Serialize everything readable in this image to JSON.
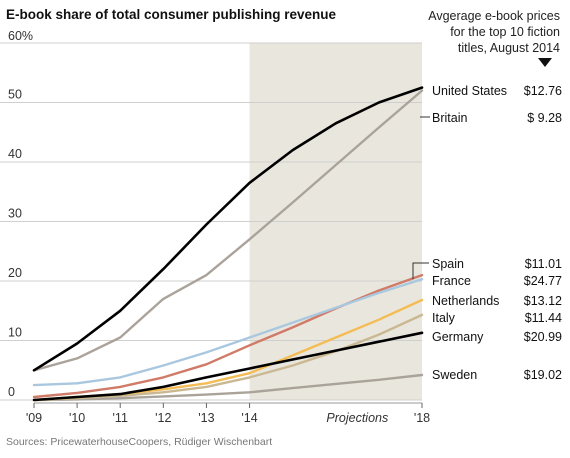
{
  "chart_data": {
    "type": "line",
    "title": "E-book share of total consumer publishing revenue",
    "ylabel": "",
    "y_unit_label": "60%",
    "ylim": [
      0,
      60
    ],
    "y_ticks": [
      "50",
      "40",
      "30",
      "20",
      "10",
      "0"
    ],
    "x_tick_labels": [
      "'09",
      "'10",
      "'11",
      "'12",
      "'13",
      "'14",
      "'18"
    ],
    "x": [
      2009,
      2010,
      2011,
      2012,
      2013,
      2014,
      2015,
      2016,
      2017,
      2018
    ],
    "projections_label": "Projections",
    "projection_range": [
      2014,
      2018
    ],
    "price_header": [
      "Avgerage e-book prices",
      "for the top 10 fiction",
      "titles, August 2014"
    ],
    "series": [
      {
        "name": "United States",
        "price": "$12.76",
        "color": "#000000",
        "values": [
          5,
          9.5,
          15,
          22,
          29.5,
          36.5,
          42,
          46.5,
          50,
          52.5
        ]
      },
      {
        "name": "Britain",
        "price": "$ 9.28",
        "color": "#aaa39a",
        "values": [
          5,
          7,
          10.5,
          17,
          21,
          27,
          33.2,
          39.5,
          45.8,
          52
        ]
      },
      {
        "name": "Spain",
        "price": "$11.01",
        "color": "#a9c8e0",
        "values": [
          2.5,
          2.8,
          3.8,
          5.8,
          8,
          10.5,
          13,
          15.5,
          18,
          20.3
        ]
      },
      {
        "name": "France",
        "price": "$24.77",
        "color": "#d07a68",
        "values": [
          0.5,
          1.2,
          2.2,
          3.8,
          6,
          9.2,
          12.2,
          15.4,
          18.4,
          21
        ]
      },
      {
        "name": "Netherlands",
        "price": "$13.12",
        "color": "#f4bc55",
        "values": [
          0,
          0.5,
          1,
          1.8,
          2.8,
          4.5,
          7.5,
          10.5,
          13.5,
          16.8
        ]
      },
      {
        "name": "Italy",
        "price": "$11.44",
        "color": "#c9b892",
        "values": [
          0,
          0.3,
          0.7,
          1.3,
          2.2,
          3.8,
          5.8,
          8.2,
          11,
          14.3
        ]
      },
      {
        "name": "Germany",
        "price": "$20.99",
        "color": "#000000",
        "values": [
          0,
          0.5,
          1,
          2.2,
          3.8,
          5.3,
          6.8,
          8.3,
          9.8,
          11.3
        ]
      },
      {
        "name": "Sweden",
        "price": "$19.02",
        "color": "#aaa39a",
        "values": [
          0,
          0.1,
          0.3,
          0.6,
          0.9,
          1.3,
          2,
          2.7,
          3.4,
          4.2
        ]
      }
    ],
    "grid": true
  },
  "source": "Sources: PricewaterhouseCoopers, Rüdiger Wischenbart"
}
